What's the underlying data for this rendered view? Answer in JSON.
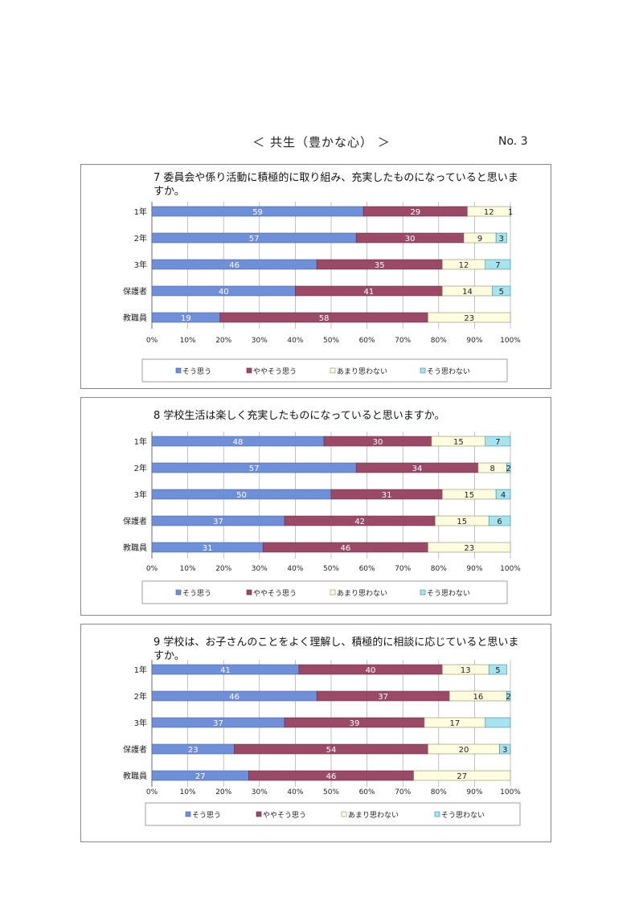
{
  "header": {
    "title": "＜ 共生（豊かな心） ＞",
    "page_no": "No. 3"
  },
  "chart_data": [
    {
      "type": "bar",
      "stacked": true,
      "orientation": "horizontal",
      "title": "7  委員会や係り活動に積極的に取り組み、充実したものになっていると思いますか。",
      "categories": [
        "1年",
        "2年",
        "3年",
        "保護者",
        "教職員"
      ],
      "series": [
        {
          "name": "そう思う",
          "values": [
            59,
            57,
            46,
            40,
            19
          ]
        },
        {
          "name": "ややそう思う",
          "values": [
            29,
            30,
            35,
            41,
            58
          ]
        },
        {
          "name": "あまり思わない",
          "values": [
            12,
            9,
            12,
            14,
            23
          ]
        },
        {
          "name": "そう思わない",
          "values": [
            1,
            3,
            7,
            5,
            0
          ]
        }
      ],
      "xticks": [
        "0%",
        "10%",
        "20%",
        "30%",
        "40%",
        "50%",
        "60%",
        "70%",
        "80%",
        "90%",
        "100%"
      ],
      "xlim": [
        0,
        100
      ],
      "legend": "bottom",
      "grid": true
    },
    {
      "type": "bar",
      "stacked": true,
      "orientation": "horizontal",
      "title": "8  学校生活は楽しく充実したものになっていると思いますか。",
      "categories": [
        "1年",
        "2年",
        "3年",
        "保護者",
        "教職員"
      ],
      "series": [
        {
          "name": "そう思う",
          "values": [
            48,
            57,
            50,
            37,
            31
          ]
        },
        {
          "name": "ややそう思う",
          "values": [
            30,
            34,
            31,
            42,
            46
          ]
        },
        {
          "name": "あまり思わない",
          "values": [
            15,
            8,
            15,
            15,
            23
          ]
        },
        {
          "name": "そう思わない",
          "values": [
            7,
            2,
            4,
            6,
            0
          ]
        }
      ],
      "xticks": [
        "0%",
        "10%",
        "20%",
        "30%",
        "40%",
        "50%",
        "60%",
        "70%",
        "80%",
        "90%",
        "100%"
      ],
      "xlim": [
        0,
        100
      ],
      "legend": "bottom",
      "grid": true
    },
    {
      "type": "bar",
      "stacked": true,
      "orientation": "horizontal",
      "title": "9  学校は、お子さんのことをよく理解し、積極的に相談に応じていると思いますか。",
      "categories": [
        "1年",
        "2年",
        "3年",
        "保護者",
        "教職員"
      ],
      "series": [
        {
          "name": "そう思う",
          "values": [
            41,
            46,
            37,
            23,
            27
          ]
        },
        {
          "name": "ややそう思う",
          "values": [
            40,
            37,
            39,
            54,
            46
          ]
        },
        {
          "name": "あまり思わない",
          "values": [
            13,
            16,
            17,
            20,
            27
          ]
        },
        {
          "name": "そう思わない",
          "values": [
            5,
            2,
            7,
            3,
            0
          ]
        }
      ],
      "value_labels_hidden": [
        [
          false,
          false,
          false,
          false
        ],
        [
          false,
          false,
          false,
          false
        ],
        [
          false,
          false,
          false,
          true
        ],
        [
          false,
          false,
          false,
          false
        ],
        [
          false,
          false,
          false,
          false
        ]
      ],
      "xticks": [
        "0%",
        "10%",
        "20%",
        "30%",
        "40%",
        "50%",
        "60%",
        "70%",
        "80%",
        "90%",
        "100%"
      ],
      "xlim": [
        0,
        100
      ],
      "legend": "bottom",
      "grid": true
    }
  ],
  "colors": {
    "series": [
      "#6f8fd8",
      "#9a4a66",
      "#fffde0",
      "#a8e4ee"
    ],
    "series_stroke": [
      "#3f5fa8",
      "#6e2a44",
      "#8a8a6a",
      "#3a8a9a"
    ],
    "label_light": "#ffffff",
    "label_dark": "#222222"
  }
}
